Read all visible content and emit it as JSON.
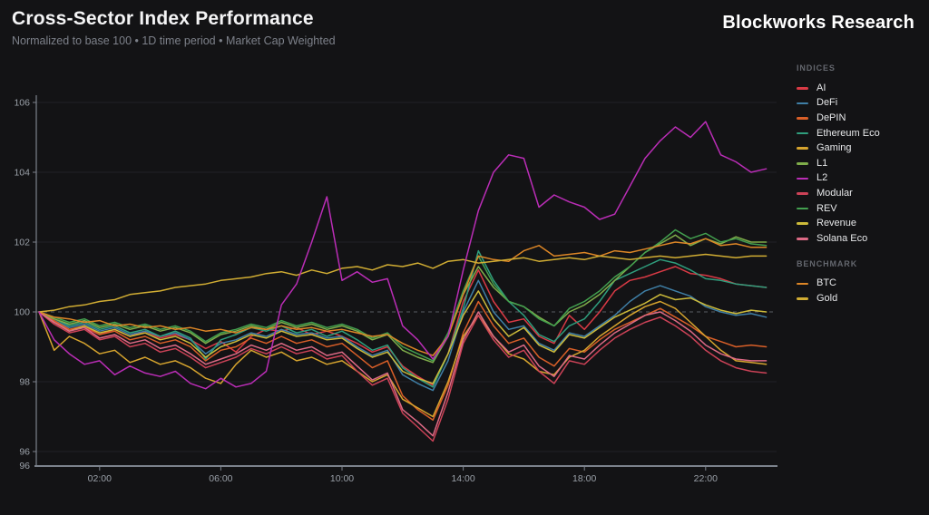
{
  "header": {
    "title": "Cross-Sector Index Performance",
    "subtitle": "Normalized to base 100 • 1D time period • Market Cap Weighted",
    "brand": "Blockworks Research"
  },
  "legend": {
    "indices_label": "INDICES",
    "benchmark_label": "BENCHMARK",
    "indices": [
      "AI",
      "DeFi",
      "DePIN",
      "Ethereum Eco",
      "Gaming",
      "L1",
      "L2",
      "Modular",
      "REV",
      "Revenue",
      "Solana Eco"
    ],
    "benchmark": [
      "BTC",
      "Gold"
    ]
  },
  "chart_data": {
    "type": "line",
    "title": "Cross-Sector Index Performance",
    "xlabel": "",
    "ylabel": "",
    "baseline": 100,
    "x_unit": "hours",
    "x_start": 0,
    "x_step": 0.5,
    "x_tick_hours": [
      2,
      6,
      10,
      14,
      18,
      22
    ],
    "x_tick_labels": [
      "02:00",
      "06:00",
      "10:00",
      "14:00",
      "18:00",
      "22:00"
    ],
    "y_ticks": [
      96,
      98,
      100,
      102,
      104,
      106
    ],
    "y_axis_min_label": "96",
    "ylim": [
      95.6,
      106.35
    ],
    "grid": "horizontal",
    "legend_position": "right",
    "style": {
      "axis_color": "#7c828c",
      "grid_color": "#202127",
      "baseline_color": "#5a5d64",
      "tick_label_color": "#9aa0a8"
    },
    "series": [
      {
        "name": "AI",
        "color": "#d93a45",
        "values": [
          100,
          99.7,
          99.5,
          99.55,
          99.35,
          99.5,
          99.3,
          99.45,
          99.25,
          99.35,
          99.2,
          98.95,
          99.15,
          98.85,
          99.3,
          99.5,
          99.45,
          99.55,
          99.35,
          99.45,
          99.3,
          99.1,
          98.85,
          99.0,
          98.45,
          98.15,
          97.9,
          98.8,
          100.3,
          101.2,
          100.3,
          99.7,
          99.8,
          99.3,
          99.1,
          99.9,
          99.5,
          100.0,
          100.6,
          100.9,
          101.0,
          101.15,
          101.3,
          101.1,
          101.05,
          100.95,
          100.8,
          100.75,
          100.7
        ]
      },
      {
        "name": "DeFi",
        "color": "#3f7fa6",
        "values": [
          100,
          99.75,
          99.55,
          99.65,
          99.45,
          99.55,
          99.35,
          99.45,
          99.3,
          99.4,
          99.2,
          98.8,
          99.1,
          99.2,
          99.4,
          99.3,
          99.5,
          99.35,
          99.4,
          99.25,
          99.3,
          99.0,
          98.75,
          98.9,
          98.2,
          97.95,
          97.75,
          98.6,
          100.0,
          100.9,
          100.0,
          99.5,
          99.6,
          99.1,
          98.9,
          99.4,
          99.3,
          99.6,
          99.9,
          100.3,
          100.6,
          100.75,
          100.6,
          100.45,
          100.15,
          100.0,
          99.9,
          99.95,
          99.85
        ]
      },
      {
        "name": "DePIN",
        "color": "#d95f28",
        "values": [
          100,
          99.75,
          99.5,
          99.6,
          99.35,
          99.45,
          99.2,
          99.3,
          99.1,
          99.2,
          99.0,
          98.6,
          98.9,
          99.0,
          99.25,
          99.1,
          99.3,
          99.1,
          99.2,
          99.0,
          99.1,
          98.75,
          98.4,
          98.6,
          97.6,
          97.2,
          96.9,
          97.9,
          99.4,
          100.3,
          99.6,
          99.1,
          99.25,
          98.7,
          98.45,
          98.95,
          98.85,
          99.2,
          99.5,
          99.7,
          99.9,
          100.1,
          99.85,
          99.6,
          99.3,
          99.15,
          99.0,
          99.05,
          99.0
        ]
      },
      {
        "name": "Ethereum Eco",
        "color": "#2f9e7d",
        "values": [
          100,
          99.8,
          99.6,
          99.7,
          99.5,
          99.6,
          99.4,
          99.5,
          99.3,
          99.45,
          99.25,
          98.65,
          99.2,
          99.35,
          99.55,
          99.45,
          99.6,
          99.4,
          99.5,
          99.3,
          99.45,
          99.2,
          98.9,
          99.05,
          98.4,
          98.1,
          97.85,
          98.8,
          100.1,
          101.75,
          100.9,
          100.3,
          99.9,
          99.35,
          99.15,
          99.6,
          99.8,
          100.3,
          100.9,
          101.1,
          101.3,
          101.5,
          101.4,
          101.2,
          100.95,
          100.9,
          100.8,
          100.75,
          100.7
        ]
      },
      {
        "name": "Gaming",
        "color": "#d6a42e",
        "values": [
          100,
          98.9,
          99.3,
          99.1,
          98.8,
          98.9,
          98.55,
          98.7,
          98.5,
          98.6,
          98.4,
          98.1,
          97.95,
          98.5,
          98.9,
          98.7,
          98.85,
          98.6,
          98.7,
          98.5,
          98.6,
          98.3,
          98.0,
          98.2,
          97.5,
          97.25,
          97.0,
          98.0,
          99.3,
          99.9,
          99.3,
          98.8,
          98.65,
          98.3,
          98.2,
          98.7,
          98.9,
          99.3,
          99.6,
          99.9,
          100.15,
          100.3,
          100.1,
          99.7,
          99.3,
          98.9,
          98.6,
          98.55,
          98.5
        ]
      },
      {
        "name": "L1",
        "color": "#7fad4a",
        "values": [
          100,
          99.8,
          99.65,
          99.75,
          99.55,
          99.65,
          99.5,
          99.6,
          99.45,
          99.55,
          99.4,
          99.1,
          99.35,
          99.45,
          99.6,
          99.5,
          99.7,
          99.55,
          99.65,
          99.5,
          99.6,
          99.45,
          99.2,
          99.35,
          98.9,
          98.7,
          98.55,
          99.3,
          100.5,
          101.3,
          100.7,
          100.3,
          100.15,
          99.85,
          99.6,
          100.0,
          100.2,
          100.5,
          100.9,
          101.3,
          101.7,
          101.95,
          102.2,
          101.9,
          102.1,
          101.95,
          102.15,
          102.0,
          102.0
        ]
      },
      {
        "name": "Modular",
        "color": "#cc4257",
        "values": [
          100,
          99.65,
          99.4,
          99.5,
          99.2,
          99.3,
          99.0,
          99.1,
          98.85,
          98.95,
          98.7,
          98.4,
          98.55,
          98.7,
          98.95,
          98.8,
          99.0,
          98.8,
          98.9,
          98.65,
          98.75,
          98.3,
          97.9,
          98.1,
          97.1,
          96.7,
          96.3,
          97.5,
          99.1,
          99.9,
          99.2,
          98.7,
          98.9,
          98.3,
          97.95,
          98.6,
          98.5,
          98.9,
          99.25,
          99.5,
          99.7,
          99.85,
          99.6,
          99.3,
          98.9,
          98.6,
          98.4,
          98.3,
          98.25
        ]
      },
      {
        "name": "REV",
        "color": "#43a04f",
        "values": [
          100,
          99.85,
          99.7,
          99.8,
          99.6,
          99.7,
          99.55,
          99.65,
          99.5,
          99.6,
          99.45,
          99.15,
          99.4,
          99.5,
          99.65,
          99.55,
          99.75,
          99.6,
          99.7,
          99.55,
          99.65,
          99.5,
          99.25,
          99.4,
          99.0,
          98.8,
          98.6,
          99.4,
          100.6,
          101.6,
          100.8,
          100.3,
          100.15,
          99.8,
          99.6,
          100.1,
          100.3,
          100.6,
          101.0,
          101.3,
          101.7,
          102.0,
          102.35,
          102.1,
          102.25,
          102.0,
          102.1,
          101.95,
          101.9
        ]
      },
      {
        "name": "Revenue",
        "color": "#cdbb3a",
        "values": [
          100,
          99.7,
          99.45,
          99.6,
          99.4,
          99.5,
          99.3,
          99.4,
          99.2,
          99.3,
          99.1,
          98.7,
          99.0,
          99.15,
          99.35,
          99.25,
          99.45,
          99.3,
          99.35,
          99.2,
          99.25,
          98.95,
          98.7,
          98.85,
          98.3,
          98.1,
          97.95,
          98.8,
          99.9,
          100.6,
          99.8,
          99.3,
          99.55,
          99.05,
          98.85,
          99.35,
          99.25,
          99.55,
          99.85,
          100.05,
          100.25,
          100.5,
          100.35,
          100.4,
          100.2,
          100.05,
          99.95,
          100.05,
          100.0
        ]
      },
      {
        "name": "Solana Eco",
        "color": "#dd6a85",
        "values": [
          100,
          99.7,
          99.45,
          99.55,
          99.25,
          99.35,
          99.1,
          99.2,
          98.95,
          99.05,
          98.8,
          98.5,
          98.65,
          98.8,
          99.05,
          98.9,
          99.1,
          98.9,
          99.0,
          98.75,
          98.85,
          98.45,
          98.05,
          98.25,
          97.2,
          96.85,
          96.45,
          97.7,
          99.2,
          100.0,
          99.3,
          98.85,
          99.05,
          98.45,
          98.15,
          98.75,
          98.65,
          99.05,
          99.4,
          99.65,
          99.9,
          100.0,
          99.75,
          99.45,
          99.05,
          98.8,
          98.65,
          98.6,
          98.6
        ]
      },
      {
        "name": "BTC",
        "color": "#dd8626",
        "values": [
          100,
          99.85,
          99.8,
          99.7,
          99.75,
          99.6,
          99.65,
          99.55,
          99.6,
          99.5,
          99.55,
          99.45,
          99.5,
          99.4,
          99.55,
          99.5,
          99.6,
          99.5,
          99.55,
          99.45,
          99.5,
          99.4,
          99.3,
          99.35,
          99.1,
          98.9,
          98.75,
          99.3,
          100.5,
          101.6,
          101.5,
          101.45,
          101.75,
          101.9,
          101.6,
          101.65,
          101.7,
          101.6,
          101.75,
          101.7,
          101.8,
          101.9,
          102.0,
          101.95,
          102.1,
          101.9,
          101.95,
          101.85,
          101.85
        ]
      },
      {
        "name": "Gold",
        "color": "#d1ad33",
        "values": [
          100,
          100.05,
          100.15,
          100.2,
          100.3,
          100.35,
          100.5,
          100.55,
          100.6,
          100.7,
          100.75,
          100.8,
          100.9,
          100.95,
          101.0,
          101.1,
          101.15,
          101.05,
          101.2,
          101.1,
          101.25,
          101.3,
          101.2,
          101.35,
          101.3,
          101.4,
          101.25,
          101.45,
          101.5,
          101.4,
          101.45,
          101.5,
          101.55,
          101.45,
          101.5,
          101.55,
          101.5,
          101.6,
          101.55,
          101.5,
          101.55,
          101.6,
          101.55,
          101.6,
          101.65,
          101.6,
          101.55,
          101.6,
          101.6
        ]
      },
      {
        "name": "L2",
        "color": "#ba2db6",
        "values": [
          100,
          99.2,
          98.8,
          98.5,
          98.6,
          98.2,
          98.45,
          98.25,
          98.15,
          98.3,
          97.95,
          97.8,
          98.1,
          97.85,
          97.95,
          98.3,
          100.2,
          100.8,
          102.0,
          103.3,
          100.9,
          101.15,
          100.85,
          100.95,
          99.6,
          99.2,
          98.65,
          99.3,
          101.2,
          102.9,
          104.0,
          104.5,
          104.4,
          103.0,
          103.35,
          103.15,
          103.0,
          102.65,
          102.8,
          103.6,
          104.4,
          104.9,
          105.3,
          105.0,
          105.45,
          104.5,
          104.3,
          104.0,
          104.1
        ]
      }
    ]
  }
}
